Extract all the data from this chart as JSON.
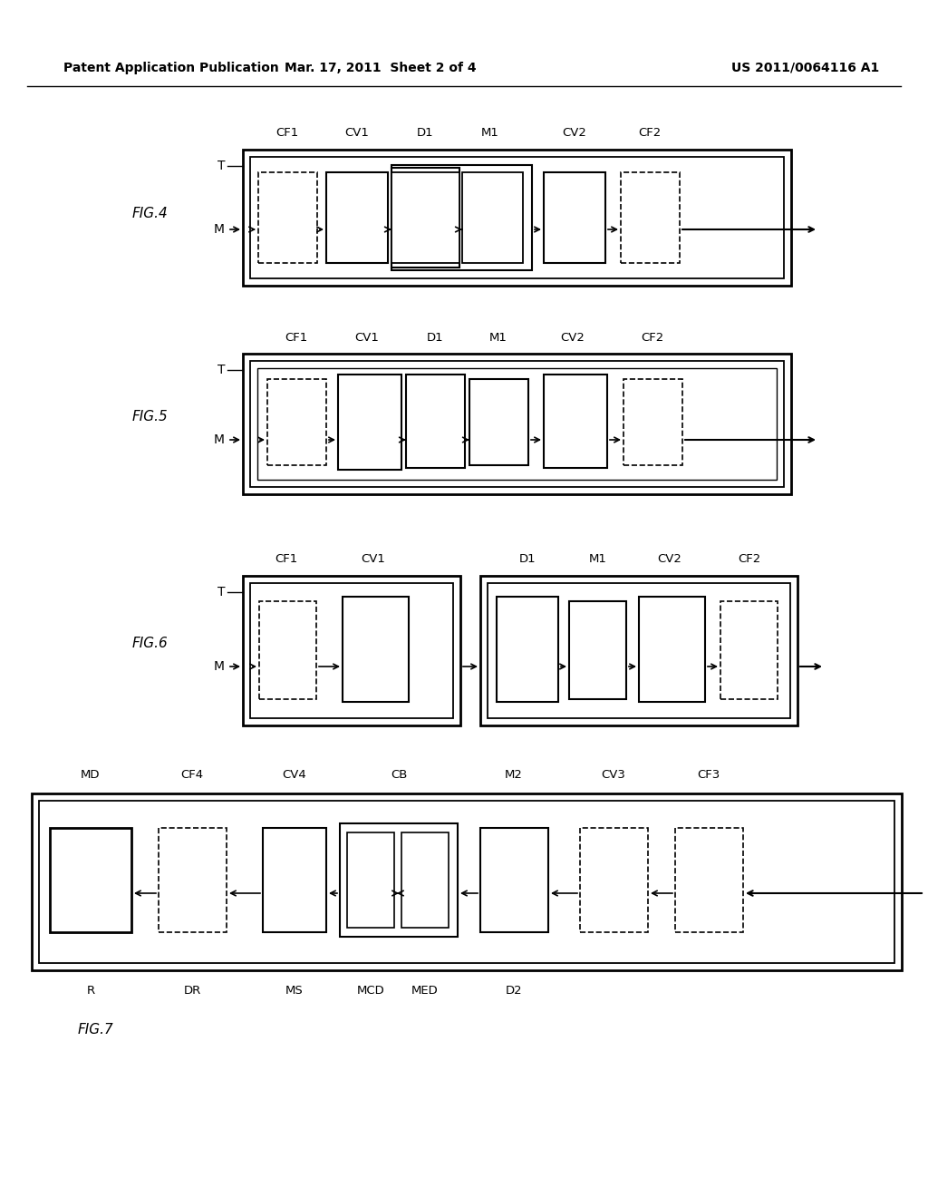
{
  "header_left": "Patent Application Publication",
  "header_mid": "Mar. 17, 2011  Sheet 2 of 4",
  "header_right": "US 2011/0064116 A1",
  "bg": "#ffffff",
  "fig4_label": "FIG.4",
  "fig5_label": "FIG.5",
  "fig6_label": "FIG.6",
  "fig7_label": "FIG.7",
  "labels_456_top": [
    "CF1",
    "CV1",
    "D1",
    "M1",
    "CV2",
    "CF2"
  ],
  "fig7_labels_top": [
    "MD",
    "CF4",
    "CV4",
    "CB",
    "M2",
    "CV3",
    "CF3"
  ],
  "fig7_labels_bot": [
    "R",
    "DR",
    "MS",
    "MCD",
    "MED",
    "D2"
  ]
}
